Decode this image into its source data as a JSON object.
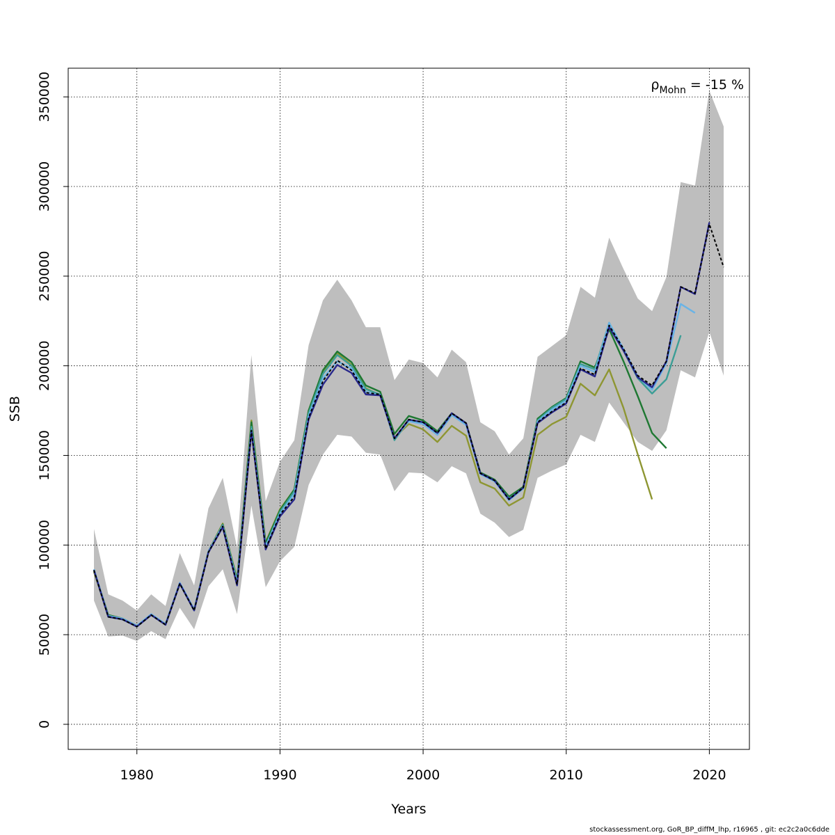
{
  "chart_data": {
    "type": "line",
    "xlabel": "Years",
    "ylabel": "SSB",
    "xlim": [
      1975.2,
      2022.8
    ],
    "ylim": [
      -14000,
      366000
    ],
    "x_ticks": [
      1980,
      1990,
      2000,
      2010,
      2020
    ],
    "y_ticks": [
      0,
      50000,
      100000,
      150000,
      200000,
      250000,
      300000,
      350000
    ],
    "grid": true,
    "annotation": {
      "rho": "ρ",
      "subscript": "Mohn",
      "text": " = -15 %"
    },
    "confidence_band": {
      "color": "#bebebe",
      "years": [
        1977,
        1978,
        1979,
        1980,
        1981,
        1982,
        1983,
        1984,
        1985,
        1986,
        1987,
        1988,
        1989,
        1990,
        1991,
        1992,
        1993,
        1994,
        1995,
        1996,
        1997,
        1998,
        1999,
        2000,
        2001,
        2002,
        2003,
        2004,
        2005,
        2006,
        2007,
        2008,
        2009,
        2010,
        2011,
        2012,
        2013,
        2014,
        2015,
        2016,
        2017,
        2018,
        2019,
        2020,
        2021
      ],
      "lower": [
        69000,
        49000,
        49500,
        46500,
        52000,
        47500,
        65000,
        53000,
        77000,
        86500,
        61500,
        122000,
        76500,
        91000,
        99000,
        133500,
        150500,
        161500,
        160500,
        151500,
        150500,
        130000,
        140500,
        140000,
        135000,
        144000,
        140000,
        117500,
        112500,
        104500,
        108500,
        137500,
        141500,
        145000,
        161500,
        157500,
        179500,
        168500,
        157500,
        152500,
        164000,
        197500,
        193500,
        219000,
        194500
      ],
      "upper": [
        109000,
        72500,
        69000,
        63500,
        72500,
        66000,
        95500,
        77500,
        120500,
        137500,
        98500,
        206000,
        124500,
        146500,
        158500,
        211500,
        236500,
        248000,
        236500,
        221500,
        221500,
        192000,
        203500,
        201500,
        193500,
        209000,
        202000,
        168500,
        163500,
        150500,
        159500,
        205000,
        211000,
        217000,
        244000,
        238000,
        271500,
        254000,
        237500,
        230500,
        249500,
        302500,
        300500,
        353500,
        333500
      ]
    },
    "series": [
      {
        "color": "#000000",
        "dashed": true,
        "years": [
          1977,
          1978,
          1979,
          1980,
          1981,
          1982,
          1983,
          1984,
          1985,
          1986,
          1987,
          1988,
          1989,
          1990,
          1991,
          1992,
          1993,
          1994,
          1995,
          1996,
          1997,
          1998,
          1999,
          2000,
          2001,
          2002,
          2003,
          2004,
          2005,
          2006,
          2007,
          2008,
          2009,
          2010,
          2011,
          2012,
          2013,
          2014,
          2015,
          2016,
          2017,
          2018,
          2019,
          2020,
          2021
        ],
        "values": [
          86000,
          60000,
          58500,
          54500,
          61000,
          55500,
          78500,
          63500,
          96000,
          110500,
          78000,
          164000,
          98000,
          117000,
          127000,
          171000,
          191500,
          203000,
          197500,
          185000,
          184000,
          159500,
          170000,
          168500,
          162500,
          173500,
          168000,
          140000,
          136000,
          125500,
          132000,
          168500,
          174500,
          179500,
          198500,
          195000,
          222500,
          209500,
          194500,
          189000,
          202500,
          244000,
          240500,
          279000,
          255000
        ]
      },
      {
        "color": "#28288c",
        "dashed": false,
        "years": [
          1977,
          1978,
          1979,
          1980,
          1981,
          1982,
          1983,
          1984,
          1985,
          1986,
          1987,
          1988,
          1989,
          1990,
          1991,
          1992,
          1993,
          1994,
          1995,
          1996,
          1997,
          1998,
          1999,
          2000,
          2001,
          2002,
          2003,
          2004,
          2005,
          2006,
          2007,
          2008,
          2009,
          2010,
          2011,
          2012,
          2013,
          2014,
          2015,
          2016,
          2017,
          2018,
          2019,
          2020
        ],
        "values": [
          86000,
          60000,
          58500,
          54500,
          61000,
          55500,
          78500,
          63500,
          96000,
          110000,
          77500,
          163500,
          97500,
          116000,
          125500,
          170000,
          189500,
          200500,
          196000,
          184000,
          183500,
          159500,
          170000,
          168500,
          162500,
          173500,
          168000,
          140000,
          136000,
          125500,
          132000,
          168000,
          174000,
          179000,
          198000,
          194000,
          221500,
          208500,
          193500,
          188000,
          202500,
          244000,
          240000,
          280000
        ]
      },
      {
        "color": "#6ab4e6",
        "dashed": false,
        "years": [
          1977,
          1978,
          1979,
          1980,
          1981,
          1982,
          1983,
          1984,
          1985,
          1986,
          1987,
          1988,
          1989,
          1990,
          1991,
          1992,
          1993,
          1994,
          1995,
          1996,
          1997,
          1998,
          1999,
          2000,
          2001,
          2002,
          2003,
          2004,
          2005,
          2006,
          2007,
          2008,
          2009,
          2010,
          2011,
          2012,
          2013,
          2014,
          2015,
          2016,
          2017,
          2018,
          2019
        ],
        "values": [
          86500,
          60500,
          59000,
          55000,
          61500,
          56000,
          79000,
          64000,
          96500,
          111000,
          79000,
          164500,
          99000,
          117500,
          128500,
          172000,
          193000,
          202500,
          198500,
          185500,
          183500,
          159500,
          169000,
          167500,
          161500,
          172500,
          167000,
          139500,
          135500,
          125000,
          131500,
          169000,
          175500,
          180500,
          200000,
          196500,
          224000,
          209500,
          194000,
          186500,
          201500,
          234500,
          229500
        ]
      },
      {
        "color": "#3c9e96",
        "dashed": false,
        "years": [
          1977,
          1978,
          1979,
          1980,
          1981,
          1982,
          1983,
          1984,
          1985,
          1986,
          1987,
          1988,
          1989,
          1990,
          1991,
          1992,
          1993,
          1994,
          1995,
          1996,
          1997,
          1998,
          1999,
          2000,
          2001,
          2002,
          2003,
          2004,
          2005,
          2006,
          2007,
          2008,
          2009,
          2010,
          2011,
          2012,
          2013,
          2014,
          2015,
          2016,
          2017,
          2018
        ],
        "values": [
          86000,
          60000,
          58500,
          54500,
          61000,
          55500,
          78500,
          63500,
          96500,
          111000,
          79500,
          166000,
          99500,
          118500,
          130000,
          173500,
          195500,
          206000,
          200000,
          187000,
          184000,
          158500,
          169500,
          168000,
          161500,
          172500,
          167500,
          140000,
          135500,
          126000,
          131500,
          169500,
          176500,
          181500,
          201000,
          198000,
          224000,
          208500,
          193000,
          184500,
          192500,
          217000
        ]
      },
      {
        "color": "#1e7832",
        "dashed": false,
        "years": [
          1977,
          1978,
          1979,
          1980,
          1981,
          1982,
          1983,
          1984,
          1985,
          1986,
          1987,
          1988,
          1989,
          1990,
          1991,
          1992,
          1993,
          1994,
          1995,
          1996,
          1997,
          1998,
          1999,
          2000,
          2001,
          2002,
          2003,
          2004,
          2005,
          2006,
          2007,
          2008,
          2009,
          2010,
          2011,
          2012,
          2013,
          2014,
          2015,
          2016,
          2017
        ],
        "values": [
          86000,
          61000,
          59000,
          55000,
          61000,
          56000,
          78500,
          64000,
          96500,
          111500,
          80500,
          168500,
          101000,
          119500,
          131000,
          175000,
          197500,
          208000,
          202000,
          189000,
          185500,
          162000,
          172000,
          169500,
          163500,
          173500,
          168000,
          140500,
          136500,
          127000,
          132500,
          170500,
          177000,
          182000,
          202500,
          199000,
          220500,
          202500,
          183000,
          162500,
          154000
        ]
      },
      {
        "color": "#8e9632",
        "dashed": false,
        "years": [
          1977,
          1978,
          1979,
          1980,
          1981,
          1982,
          1983,
          1984,
          1985,
          1986,
          1987,
          1988,
          1989,
          1990,
          1991,
          1992,
          1993,
          1994,
          1995,
          1996,
          1997,
          1998,
          1999,
          2000,
          2001,
          2002,
          2003,
          2004,
          2005,
          2006,
          2007,
          2008,
          2009,
          2010,
          2011,
          2012,
          2013,
          2014,
          2015,
          2016
        ],
        "values": [
          85000,
          61000,
          59000,
          55000,
          61000,
          56000,
          78500,
          64000,
          96500,
          112000,
          81000,
          169500,
          101500,
          120000,
          131000,
          175000,
          197000,
          207000,
          200500,
          187500,
          183500,
          160000,
          167500,
          164500,
          157500,
          166500,
          161000,
          135000,
          131500,
          122000,
          126500,
          161500,
          167500,
          171500,
          190000,
          183500,
          198000,
          176500,
          150500,
          125500
        ]
      }
    ]
  },
  "footer": "stockassessment.org, GoR_BP_diffM_lhp, r16965 , git: ec2c2a0c6dde"
}
